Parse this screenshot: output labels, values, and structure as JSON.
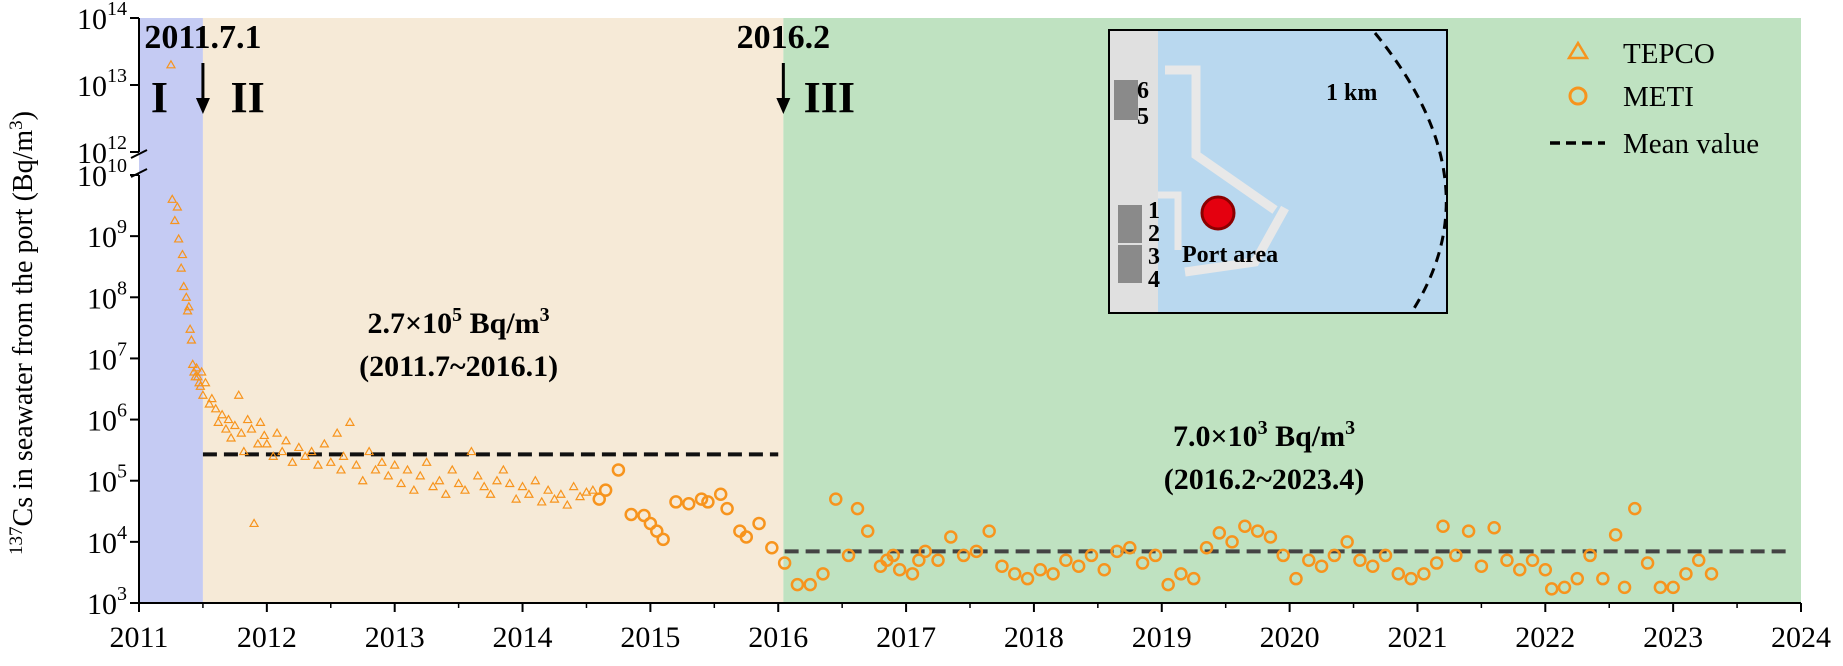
{
  "chart_data": {
    "type": "scatter",
    "title": "",
    "xlabel": "",
    "ylabel": {
      "superscript": "137",
      "text": "Cs in seawater from the port (Bq/m",
      "unit_sup": "3",
      "close": ")"
    },
    "y_scale": "log",
    "y_axis_break": true,
    "ylim_lower": [
      1000,
      10000000000
    ],
    "ylim_upper": [
      1000000000000,
      100000000000000
    ],
    "xlim": [
      2011,
      2024
    ],
    "x_ticks": [
      "2011",
      "2012",
      "2013",
      "2014",
      "2015",
      "2016",
      "2017",
      "2018",
      "2019",
      "2020",
      "2021",
      "2022",
      "2023",
      "2024"
    ],
    "y_ticks_lower": [
      {
        "exp": 3,
        "label": "10",
        "sup": "3"
      },
      {
        "exp": 4,
        "label": "10",
        "sup": "4"
      },
      {
        "exp": 5,
        "label": "10",
        "sup": "5"
      },
      {
        "exp": 6,
        "label": "10",
        "sup": "6"
      },
      {
        "exp": 7,
        "label": "10",
        "sup": "7"
      },
      {
        "exp": 8,
        "label": "10",
        "sup": "8"
      },
      {
        "exp": 9,
        "label": "10",
        "sup": "9"
      },
      {
        "exp": 10,
        "label": "10",
        "sup": "10"
      }
    ],
    "y_ticks_upper": [
      {
        "exp": 12,
        "label": "10",
        "sup": "12"
      },
      {
        "exp": 13,
        "label": "10",
        "sup": "13"
      },
      {
        "exp": 14,
        "label": "10",
        "sup": "14"
      }
    ],
    "phases": [
      {
        "name": "I",
        "x_start": 2011.0,
        "x_end": 2011.5,
        "color": "#c5cbf3"
      },
      {
        "name": "II",
        "x_start": 2011.5,
        "x_end": 2016.04,
        "color": "#f6ead7"
      },
      {
        "name": "III",
        "x_start": 2016.04,
        "x_end": 2024.0,
        "color": "#bfe2c1"
      }
    ],
    "phase_markers": [
      {
        "label": "2011.7.1",
        "x": 2011.5
      },
      {
        "label": "2016.2",
        "x": 2016.04
      }
    ],
    "mean_lines": [
      {
        "value": 270000,
        "x_start": 2011.5,
        "x_end": 2016.0,
        "color": "#111111",
        "text": "2.7×10",
        "sup": "5",
        "unit": " Bq/m",
        "unit_sup": "3",
        "period": "(2011.7~2016.1)"
      },
      {
        "value": 7000,
        "x_start": 2016.05,
        "x_end": 2023.9,
        "color": "#444444",
        "text": "7.0×10",
        "sup": "3",
        "unit": " Bq/m",
        "unit_sup": "3",
        "period": "(2016.2~2023.4)"
      }
    ],
    "legend": {
      "placement": "top-right",
      "entries": [
        {
          "label": "TEPCO",
          "marker": "triangle"
        },
        {
          "label": "METI",
          "marker": "circle"
        },
        {
          "label": "Mean value",
          "marker": "dashed-line"
        }
      ]
    },
    "inset_map": {
      "units": [
        "6",
        "5",
        "1",
        "2",
        "3",
        "4"
      ],
      "distance_label": "1 km",
      "area_label": "Port area"
    },
    "series": [
      {
        "name": "TEPCO",
        "marker": "triangle",
        "color": "#f7941d",
        "points": [
          [
            2011.25,
            20000000000000
          ],
          [
            2011.26,
            4000000000
          ],
          [
            2011.28,
            1800000000
          ],
          [
            2011.3,
            3000000000
          ],
          [
            2011.31,
            900000000
          ],
          [
            2011.33,
            300000000
          ],
          [
            2011.34,
            500000000
          ],
          [
            2011.35,
            150000000
          ],
          [
            2011.37,
            100000000
          ],
          [
            2011.38,
            60000000
          ],
          [
            2011.39,
            70000000
          ],
          [
            2011.4,
            30000000
          ],
          [
            2011.41,
            20000000
          ],
          [
            2011.42,
            8000000
          ],
          [
            2011.43,
            6000000
          ],
          [
            2011.44,
            5000000
          ],
          [
            2011.45,
            7000000
          ],
          [
            2011.46,
            5000000
          ],
          [
            2011.47,
            4000000
          ],
          [
            2011.48,
            3500000
          ],
          [
            2011.49,
            6000000
          ],
          [
            2011.5,
            2500000
          ],
          [
            2011.52,
            4000000
          ],
          [
            2011.55,
            1800000
          ],
          [
            2011.57,
            2200000
          ],
          [
            2011.6,
            1500000
          ],
          [
            2011.62,
            900000
          ],
          [
            2011.65,
            1200000
          ],
          [
            2011.68,
            700000
          ],
          [
            2011.7,
            1000000
          ],
          [
            2011.72,
            500000
          ],
          [
            2011.75,
            800000
          ],
          [
            2011.78,
            2500000
          ],
          [
            2011.8,
            600000
          ],
          [
            2011.82,
            300000
          ],
          [
            2011.85,
            1000000
          ],
          [
            2011.88,
            700000
          ],
          [
            2011.9,
            20000
          ],
          [
            2011.93,
            400000
          ],
          [
            2011.95,
            900000
          ],
          [
            2011.98,
            550000
          ],
          [
            2012.0,
            400000
          ],
          [
            2012.05,
            250000
          ],
          [
            2012.08,
            600000
          ],
          [
            2012.12,
            300000
          ],
          [
            2012.15,
            450000
          ],
          [
            2012.2,
            200000
          ],
          [
            2012.25,
            350000
          ],
          [
            2012.3,
            250000
          ],
          [
            2012.35,
            300000
          ],
          [
            2012.4,
            180000
          ],
          [
            2012.45,
            400000
          ],
          [
            2012.5,
            200000
          ],
          [
            2012.55,
            600000
          ],
          [
            2012.58,
            150000
          ],
          [
            2012.6,
            250000
          ],
          [
            2012.65,
            900000
          ],
          [
            2012.7,
            180000
          ],
          [
            2012.75,
            100000
          ],
          [
            2012.8,
            300000
          ],
          [
            2012.85,
            150000
          ],
          [
            2012.9,
            200000
          ],
          [
            2012.95,
            120000
          ],
          [
            2013.0,
            180000
          ],
          [
            2013.05,
            90000
          ],
          [
            2013.1,
            150000
          ],
          [
            2013.15,
            70000
          ],
          [
            2013.2,
            120000
          ],
          [
            2013.25,
            200000
          ],
          [
            2013.3,
            80000
          ],
          [
            2013.35,
            100000
          ],
          [
            2013.4,
            60000
          ],
          [
            2013.45,
            150000
          ],
          [
            2013.5,
            90000
          ],
          [
            2013.55,
            70000
          ],
          [
            2013.6,
            300000
          ],
          [
            2013.65,
            120000
          ],
          [
            2013.7,
            80000
          ],
          [
            2013.75,
            60000
          ],
          [
            2013.8,
            100000
          ],
          [
            2013.85,
            150000
          ],
          [
            2013.9,
            90000
          ],
          [
            2013.95,
            50000
          ],
          [
            2014.0,
            80000
          ],
          [
            2014.05,
            60000
          ],
          [
            2014.1,
            100000
          ],
          [
            2014.15,
            45000
          ],
          [
            2014.2,
            70000
          ],
          [
            2014.25,
            50000
          ],
          [
            2014.3,
            60000
          ],
          [
            2014.35,
            40000
          ],
          [
            2014.4,
            80000
          ],
          [
            2014.45,
            55000
          ],
          [
            2014.5,
            65000
          ],
          [
            2014.55,
            70000
          ]
        ]
      },
      {
        "name": "METI",
        "marker": "circle",
        "color": "#f7941d",
        "points": [
          [
            2014.6,
            50000
          ],
          [
            2014.65,
            70000
          ],
          [
            2014.75,
            150000
          ],
          [
            2014.85,
            28000
          ],
          [
            2014.95,
            27000
          ],
          [
            2015.0,
            20000
          ],
          [
            2015.05,
            15000
          ],
          [
            2015.1,
            11000
          ],
          [
            2015.2,
            45000
          ],
          [
            2015.3,
            42000
          ],
          [
            2015.4,
            50000
          ],
          [
            2015.45,
            45000
          ],
          [
            2015.55,
            60000
          ],
          [
            2015.6,
            35000
          ],
          [
            2015.7,
            15000
          ],
          [
            2015.75,
            12000
          ],
          [
            2015.85,
            20000
          ],
          [
            2015.95,
            8000
          ],
          [
            2016.05,
            4500
          ],
          [
            2016.15,
            2000
          ],
          [
            2016.25,
            2000
          ],
          [
            2016.35,
            3000
          ],
          [
            2016.45,
            50000
          ],
          [
            2016.55,
            6000
          ],
          [
            2016.62,
            35000
          ],
          [
            2016.7,
            15000
          ],
          [
            2016.8,
            4000
          ],
          [
            2016.85,
            5000
          ],
          [
            2016.9,
            6000
          ],
          [
            2016.95,
            3500
          ],
          [
            2017.05,
            3000
          ],
          [
            2017.1,
            5000
          ],
          [
            2017.15,
            7000
          ],
          [
            2017.25,
            5000
          ],
          [
            2017.35,
            12000
          ],
          [
            2017.45,
            6000
          ],
          [
            2017.55,
            7000
          ],
          [
            2017.65,
            15000
          ],
          [
            2017.75,
            4000
          ],
          [
            2017.85,
            3000
          ],
          [
            2017.95,
            2500
          ],
          [
            2018.05,
            3500
          ],
          [
            2018.15,
            3000
          ],
          [
            2018.25,
            5000
          ],
          [
            2018.35,
            4000
          ],
          [
            2018.45,
            6000
          ],
          [
            2018.55,
            3500
          ],
          [
            2018.65,
            7000
          ],
          [
            2018.75,
            8000
          ],
          [
            2018.85,
            4500
          ],
          [
            2018.95,
            6000
          ],
          [
            2019.05,
            2000
          ],
          [
            2019.15,
            3000
          ],
          [
            2019.25,
            2500
          ],
          [
            2019.35,
            8000
          ],
          [
            2019.45,
            14000
          ],
          [
            2019.55,
            10000
          ],
          [
            2019.65,
            18000
          ],
          [
            2019.75,
            15000
          ],
          [
            2019.85,
            12000
          ],
          [
            2019.95,
            6000
          ],
          [
            2020.05,
            2500
          ],
          [
            2020.15,
            5000
          ],
          [
            2020.25,
            4000
          ],
          [
            2020.35,
            6000
          ],
          [
            2020.45,
            10000
          ],
          [
            2020.55,
            5000
          ],
          [
            2020.65,
            4000
          ],
          [
            2020.75,
            6000
          ],
          [
            2020.85,
            3000
          ],
          [
            2020.95,
            2500
          ],
          [
            2021.05,
            3000
          ],
          [
            2021.15,
            4500
          ],
          [
            2021.2,
            18000
          ],
          [
            2021.3,
            6000
          ],
          [
            2021.4,
            15000
          ],
          [
            2021.5,
            4000
          ],
          [
            2021.6,
            17000
          ],
          [
            2021.7,
            5000
          ],
          [
            2021.8,
            3500
          ],
          [
            2021.9,
            5000
          ],
          [
            2022.0,
            3500
          ],
          [
            2022.05,
            1700
          ],
          [
            2022.15,
            1800
          ],
          [
            2022.25,
            2500
          ],
          [
            2022.35,
            6000
          ],
          [
            2022.45,
            2500
          ],
          [
            2022.55,
            13000
          ],
          [
            2022.62,
            1800
          ],
          [
            2022.7,
            35000
          ],
          [
            2022.8,
            4500
          ],
          [
            2022.9,
            1800
          ],
          [
            2023.0,
            1800
          ],
          [
            2023.1,
            3000
          ],
          [
            2023.2,
            5000
          ],
          [
            2023.3,
            3000
          ]
        ]
      }
    ]
  }
}
